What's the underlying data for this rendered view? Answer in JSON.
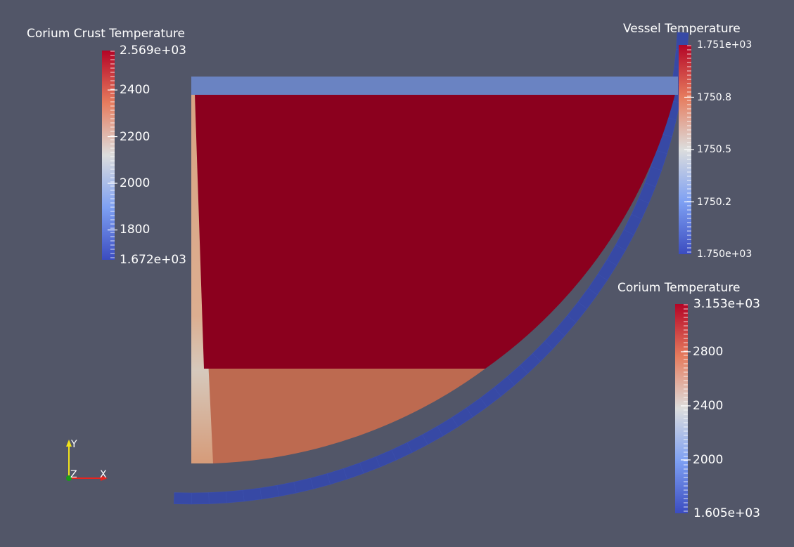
{
  "scene": {
    "background_color": "#525668",
    "corium_pool_color": "#8b001e",
    "corium_lower_color": "#bd6a50",
    "crust_color": "#d49a78",
    "vessel_color": "#3749a5",
    "top_plate_color": "#6a83c2"
  },
  "legends": {
    "corium_crust": {
      "title": "Corium Crust Temperature",
      "max_label": "2.569e+03",
      "min_label": "1.672e+03",
      "min_value": 1672,
      "max_value": 2569,
      "ticks": [
        {
          "label": "2400",
          "value": 2400
        },
        {
          "label": "2200",
          "value": 2200
        },
        {
          "label": "2000",
          "value": 2000
        },
        {
          "label": "1800",
          "value": 1800
        }
      ]
    },
    "vessel": {
      "title": "Vessel Temperature",
      "max_label": "1.751e+03",
      "min_label": "1.750e+03",
      "ticks": [
        {
          "label": "1750.8",
          "fraction": 0.75
        },
        {
          "label": "1750.5",
          "fraction": 0.5
        },
        {
          "label": "1750.2",
          "fraction": 0.25
        }
      ]
    },
    "corium": {
      "title": "Corium Temperature",
      "max_label": "3.153e+03",
      "min_label": "1.605e+03",
      "min_value": 1605,
      "max_value": 3153,
      "ticks": [
        {
          "label": "2800",
          "value": 2800
        },
        {
          "label": "2400",
          "value": 2400
        },
        {
          "label": "2000",
          "value": 2000
        }
      ]
    }
  },
  "axes": {
    "x_label": "X",
    "y_label": "Y",
    "z_label": "Z",
    "x_color": "#e8241e",
    "y_color": "#f2e31b",
    "z_color": "#1b9a1b"
  }
}
